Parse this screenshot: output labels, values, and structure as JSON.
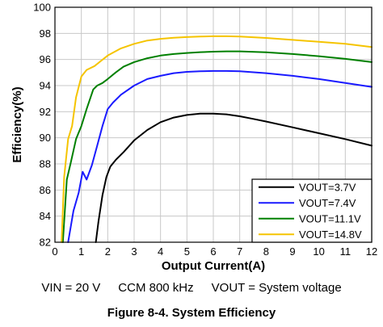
{
  "chart_data": {
    "type": "line",
    "xlabel": "Output Current(A)",
    "ylabel": "Efficiency(%)",
    "xlim": [
      0,
      12
    ],
    "ylim": [
      82,
      100
    ],
    "xticks": [
      0,
      1,
      2,
      3,
      4,
      5,
      6,
      7,
      8,
      9,
      10,
      11,
      12
    ],
    "yticks": [
      82,
      84,
      86,
      88,
      90,
      92,
      94,
      96,
      98,
      100
    ],
    "grid": true,
    "legend_position": "bottom-right",
    "series": [
      {
        "name": "VOUT=3.7V",
        "color": "#000000",
        "x": [
          1.55,
          1.65,
          1.8,
          1.95,
          2.1,
          2.3,
          2.6,
          3.0,
          3.5,
          4.0,
          4.5,
          5.0,
          5.5,
          6.0,
          6.5,
          7.0,
          7.5,
          8.0,
          9.0,
          10.0,
          11.0,
          12.0
        ],
        "y": [
          82.0,
          83.6,
          85.6,
          87.0,
          87.8,
          88.3,
          88.9,
          89.8,
          90.6,
          91.2,
          91.55,
          91.75,
          91.85,
          91.85,
          91.8,
          91.65,
          91.45,
          91.25,
          90.8,
          90.35,
          89.9,
          89.4
        ]
      },
      {
        "name": "VOUT=7.4V",
        "color": "#1a1aff",
        "x": [
          0.5,
          0.7,
          0.9,
          1.05,
          1.2,
          1.4,
          1.6,
          1.8,
          2.0,
          2.2,
          2.5,
          3.0,
          3.5,
          4.0,
          4.5,
          5.0,
          5.5,
          6.0,
          6.5,
          7.0,
          8.0,
          9.0,
          10.0,
          11.0,
          12.0
        ],
        "y": [
          82.0,
          84.4,
          85.8,
          87.4,
          86.8,
          87.9,
          89.4,
          90.9,
          92.2,
          92.7,
          93.3,
          94.0,
          94.5,
          94.75,
          94.95,
          95.05,
          95.1,
          95.12,
          95.12,
          95.1,
          94.95,
          94.75,
          94.5,
          94.2,
          93.9
        ]
      },
      {
        "name": "VOUT=11.1V",
        "color": "#008000",
        "x": [
          0.3,
          0.45,
          0.6,
          0.8,
          1.0,
          1.2,
          1.45,
          1.6,
          1.8,
          2.0,
          2.3,
          2.6,
          3.0,
          3.5,
          4.0,
          4.5,
          5.0,
          5.5,
          6.0,
          6.5,
          7.0,
          8.0,
          9.0,
          10.0,
          11.0,
          12.0
        ],
        "y": [
          82.0,
          86.8,
          88.1,
          89.9,
          90.9,
          92.2,
          93.7,
          94.0,
          94.2,
          94.5,
          95.0,
          95.45,
          95.8,
          96.1,
          96.3,
          96.42,
          96.5,
          96.56,
          96.6,
          96.62,
          96.62,
          96.55,
          96.42,
          96.25,
          96.05,
          95.8
        ]
      },
      {
        "name": "VOUT=14.8V",
        "color": "#f5c400",
        "x": [
          0.25,
          0.35,
          0.5,
          0.65,
          0.8,
          1.0,
          1.2,
          1.5,
          2.0,
          2.5,
          3.0,
          3.5,
          4.0,
          4.5,
          5.0,
          5.5,
          6.0,
          6.5,
          7.0,
          8.0,
          9.0,
          10.0,
          11.0,
          12.0
        ],
        "y": [
          82.0,
          87.0,
          89.9,
          90.9,
          93.1,
          94.7,
          95.2,
          95.5,
          96.3,
          96.85,
          97.2,
          97.45,
          97.58,
          97.66,
          97.72,
          97.76,
          97.78,
          97.78,
          97.76,
          97.65,
          97.5,
          97.35,
          97.2,
          96.95
        ]
      }
    ]
  },
  "conditions": {
    "vin": "VIN = 20 V",
    "mode": "CCM 800 kHz",
    "vout": "VOUT = System voltage"
  },
  "figure_caption": "Figure 8-4. System Efficiency"
}
